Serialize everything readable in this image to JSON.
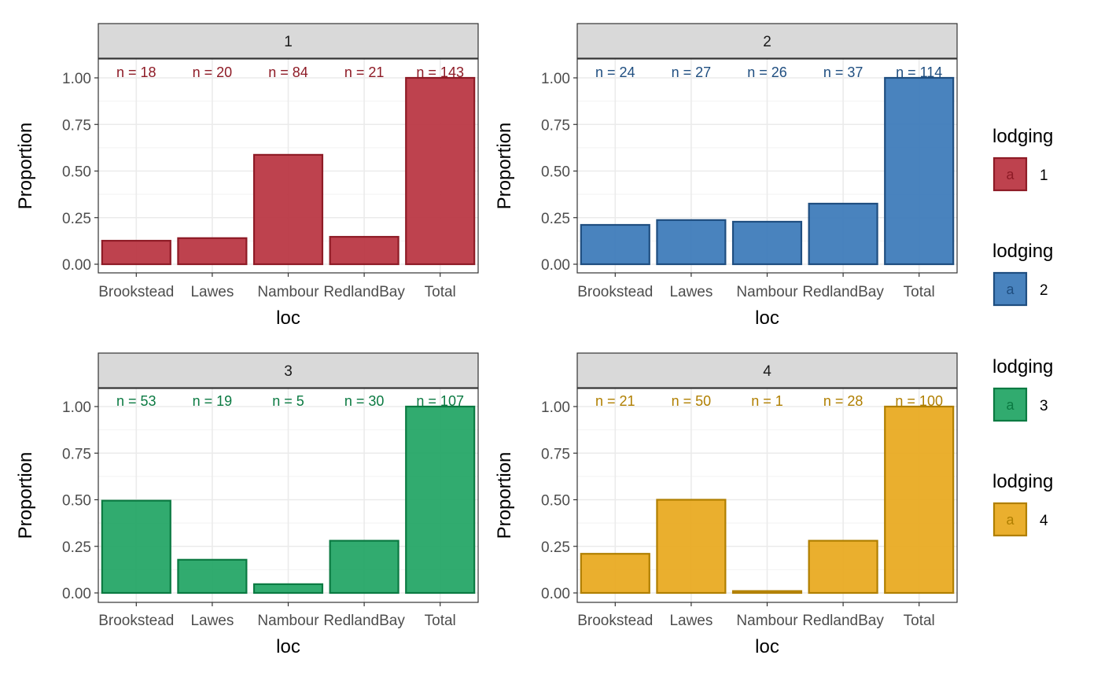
{
  "chart_data": [
    {
      "type": "bar",
      "facet_label": "1",
      "categories": [
        "Brookstead",
        "Lawes",
        "Nambour",
        "RedlandBay",
        "Total"
      ],
      "values": [
        0.126,
        0.14,
        0.587,
        0.147,
        1.0
      ],
      "n_labels": [
        "n = 18",
        "n = 20",
        "n = 84",
        "n = 21",
        "n = 143"
      ],
      "xlabel": "loc",
      "ylabel": "Proportion",
      "ylim": [
        0,
        1.05
      ],
      "yticks": [
        "0.00",
        "0.25",
        "0.50",
        "0.75",
        "1.00"
      ],
      "fill": "#B8323F",
      "stroke": "#8E1B26"
    },
    {
      "type": "bar",
      "facet_label": "2",
      "categories": [
        "Brookstead",
        "Lawes",
        "Nambour",
        "RedlandBay",
        "Total"
      ],
      "values": [
        0.211,
        0.237,
        0.228,
        0.325,
        1.0
      ],
      "n_labels": [
        "n = 24",
        "n = 27",
        "n = 26",
        "n = 37",
        "n = 114"
      ],
      "xlabel": "loc",
      "ylabel": "Proportion",
      "ylim": [
        0,
        1.05
      ],
      "yticks": [
        "0.00",
        "0.25",
        "0.50",
        "0.75",
        "1.00"
      ],
      "fill": "#3A78B8",
      "stroke": "#1F4E80"
    },
    {
      "type": "bar",
      "facet_label": "3",
      "categories": [
        "Brookstead",
        "Lawes",
        "Nambour",
        "RedlandBay",
        "Total"
      ],
      "values": [
        0.495,
        0.178,
        0.047,
        0.28,
        1.0
      ],
      "n_labels": [
        "n = 53",
        "n = 19",
        "n = 5",
        "n = 30",
        "n = 107"
      ],
      "xlabel": "loc",
      "ylabel": "Proportion",
      "ylim": [
        0,
        1.05
      ],
      "yticks": [
        "0.00",
        "0.25",
        "0.50",
        "0.75",
        "1.00"
      ],
      "fill": "#1FA463",
      "stroke": "#0B7A42"
    },
    {
      "type": "bar",
      "facet_label": "4",
      "categories": [
        "Brookstead",
        "Lawes",
        "Nambour",
        "RedlandBay",
        "Total"
      ],
      "values": [
        0.21,
        0.5,
        0.01,
        0.28,
        1.0
      ],
      "n_labels": [
        "n = 21",
        "n = 50",
        "n = 1",
        "n = 28",
        "n = 100"
      ],
      "xlabel": "loc",
      "ylabel": "Proportion",
      "ylim": [
        0,
        1.05
      ],
      "yticks": [
        "0.00",
        "0.25",
        "0.50",
        "0.75",
        "1.00"
      ],
      "fill": "#E8A81C",
      "stroke": "#B07F00"
    }
  ],
  "legend": {
    "title": "lodging",
    "key_glyph": "a",
    "entries": [
      {
        "label": "1",
        "fill": "#B8323F",
        "stroke": "#8E1B26"
      },
      {
        "label": "2",
        "fill": "#3A78B8",
        "stroke": "#1F4E80"
      },
      {
        "label": "3",
        "fill": "#1FA463",
        "stroke": "#0B7A42"
      },
      {
        "label": "4",
        "fill": "#E8A81C",
        "stroke": "#B07F00"
      }
    ]
  }
}
